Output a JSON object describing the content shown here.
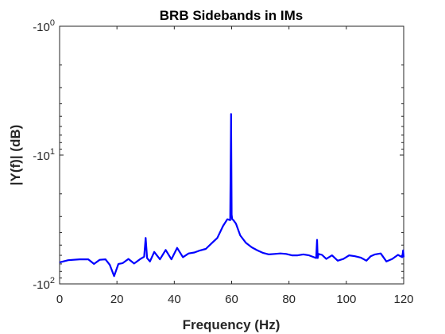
{
  "chart_data": {
    "type": "line",
    "title": "BRB Sidebands in IMs",
    "xlabel": "Frequency (Hz)",
    "ylabel": "|Y(f)| (dB)",
    "xlim": [
      0,
      120
    ],
    "xticks": [
      0,
      20,
      40,
      60,
      80,
      100,
      120
    ],
    "xtick_labels": [
      "0",
      "20",
      "40",
      "60",
      "80",
      "100",
      "120"
    ],
    "y_scale": "log-decade axis, values in dB",
    "ylim": [
      -100,
      -1
    ],
    "yticks": [
      {
        "base": "-10",
        "exponent": "0",
        "value": -1
      },
      {
        "base": "-10",
        "exponent": "1",
        "value": -10
      },
      {
        "base": "-10",
        "exponent": "2",
        "value": -100
      }
    ],
    "grid": false,
    "series": [
      {
        "color": "#0000ff",
        "x": [
          0,
          3,
          7,
          10,
          12,
          14,
          16,
          17.5,
          19,
          20.5,
          22,
          24,
          26,
          28,
          29.5,
          30,
          30.5,
          31.5,
          33,
          35,
          37,
          39,
          41,
          43,
          45,
          47,
          49,
          51,
          53,
          55,
          57,
          58.5,
          59.5,
          59.8,
          60,
          60.2,
          60.6,
          61.5,
          63,
          65,
          67,
          69,
          71,
          73,
          75,
          77,
          79,
          81,
          83,
          85,
          87,
          89.5,
          89.8,
          90,
          90.3,
          91.5,
          93,
          95,
          97,
          99,
          101,
          103,
          105,
          107,
          108.5,
          110,
          112,
          114,
          116,
          118,
          119.5,
          119.8,
          120
        ],
        "y": [
          -68,
          -65.5,
          -64.5,
          -64.5,
          -70,
          -65,
          -64.5,
          -71,
          -87,
          -70,
          -69,
          -64,
          -69.5,
          -64.5,
          -61.5,
          -44,
          -63,
          -67,
          -56.5,
          -64.5,
          -54.5,
          -64.5,
          -52.5,
          -62,
          -58,
          -57,
          -55,
          -53.5,
          -48.5,
          -44,
          -35.5,
          -31.5,
          -32,
          -4.8,
          -29,
          -31.5,
          -32,
          -34,
          -42,
          -48,
          -52,
          -55,
          -57.5,
          -59,
          -58.5,
          -58,
          -58.5,
          -60,
          -60,
          -59,
          -60,
          -63,
          -45.5,
          -63,
          -58.5,
          -59.5,
          -64,
          -60,
          -66,
          -64,
          -60,
          -61,
          -62.5,
          -66,
          -61,
          -59,
          -58,
          -67,
          -64,
          -59.5,
          -62,
          -55,
          -62
        ]
      }
    ]
  }
}
